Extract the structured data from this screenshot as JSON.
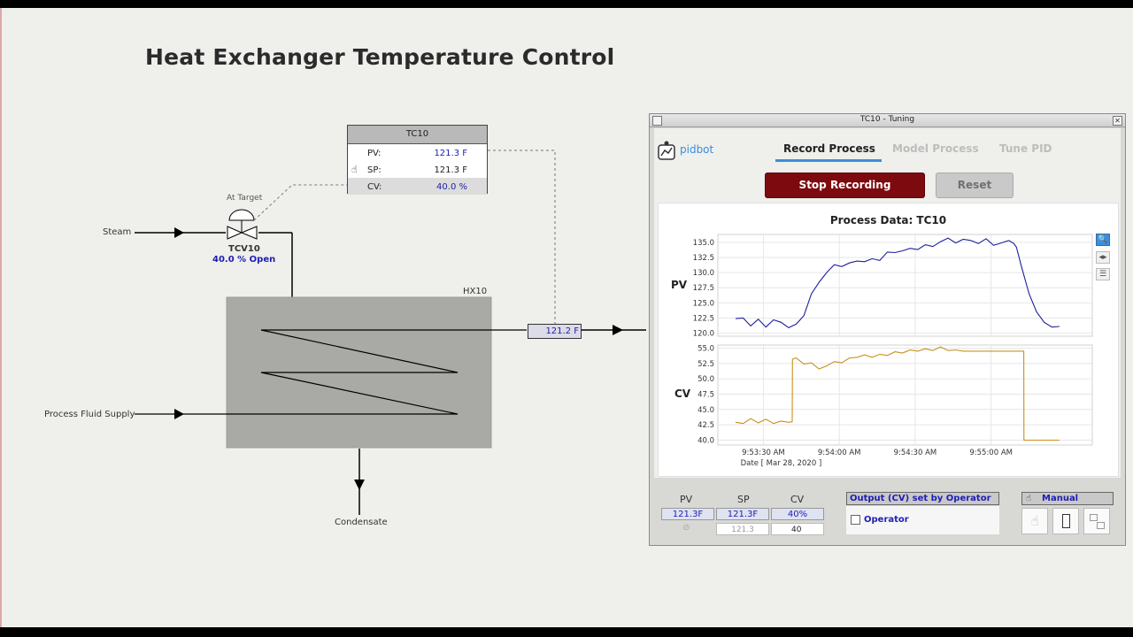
{
  "page": {
    "title": "Heat Exchanger Temperature Control"
  },
  "diagram": {
    "steam_label": "Steam",
    "valve_status": "At Target",
    "valve_tag": "TCV10",
    "valve_open": "40.0 % Open",
    "hx_tag": "HX10",
    "process_fluid_label": "Process Fluid Supply",
    "condensate_label": "Condensate",
    "outlet_temp": "121.2 F"
  },
  "faceplate": {
    "tag": "TC10",
    "pv_label": "PV:",
    "pv_value": "121.3 F",
    "sp_label": "SP:",
    "sp_value": "121.3 F",
    "cv_label": "CV:",
    "cv_value": "40.0 %"
  },
  "tuning_window": {
    "title": "TC10 - Tuning",
    "logo": "pidbot",
    "tabs": [
      "Record Process",
      "Model Process",
      "Tune PID"
    ],
    "active_tab": "Record Process",
    "stop_button": "Stop Recording",
    "reset_button": "Reset",
    "status": {
      "pv_header": "PV",
      "sp_header": "SP",
      "cv_header": "CV",
      "pv_value": "121.3F",
      "sp_value": "121.3F",
      "cv_value": "40%",
      "sp_input": "121.3",
      "cv_input": "40",
      "output_header": "Output (CV) set by Operator",
      "operator_label": "Operator",
      "mode_header": "Manual"
    }
  },
  "chart_data": {
    "type": "line",
    "title": "Process Data: TC10",
    "xlabel": "Date  [ Mar 28, 2020 ]",
    "x_ticks": [
      "9:53:30 AM",
      "9:54:00 AM",
      "9:54:30 AM",
      "9:55:00 AM"
    ],
    "x_range_seconds": [
      0,
      134
    ],
    "panels": [
      {
        "name": "PV",
        "ylabel": "PV",
        "ylim": [
          119.5,
          136.3
        ],
        "y_ticks": [
          "120.0",
          "122.5",
          "125.0",
          "127.5",
          "130.0",
          "132.5",
          "135.0"
        ],
        "color": "#1f1fa0",
        "x": [
          0,
          3,
          6,
          9,
          12,
          15,
          18,
          21,
          24,
          27,
          30,
          33,
          36,
          39,
          42,
          45,
          48,
          51,
          54,
          57,
          60,
          63,
          66,
          69,
          72,
          75,
          78,
          81,
          84,
          87,
          90,
          93,
          96,
          99,
          102,
          105,
          108,
          110,
          111,
          113,
          116,
          119,
          122,
          125,
          128
        ],
        "y": [
          122.4,
          122.5,
          121.2,
          122.3,
          121.0,
          122.2,
          121.8,
          120.9,
          121.5,
          122.9,
          126.5,
          128.4,
          130.0,
          131.3,
          131.0,
          131.6,
          131.9,
          131.8,
          132.3,
          132.0,
          133.4,
          133.3,
          133.6,
          134.0,
          133.8,
          134.6,
          134.3,
          135.1,
          135.7,
          134.9,
          135.5,
          135.3,
          134.8,
          135.6,
          134.5,
          134.9,
          135.3,
          134.8,
          134.2,
          131.0,
          126.5,
          123.5,
          121.8,
          121.0,
          121.1
        ]
      },
      {
        "name": "CV",
        "ylabel": "CV",
        "ylim": [
          39.2,
          55.5
        ],
        "y_ticks": [
          "40.0",
          "42.5",
          "45.0",
          "47.5",
          "50.0",
          "52.5",
          "55.0"
        ],
        "color": "#c8901c",
        "x": [
          0,
          3,
          6,
          9,
          12,
          15,
          18,
          21,
          22.4,
          22.5,
          24,
          27,
          30,
          33,
          36,
          39,
          42,
          45,
          48,
          51,
          54,
          57,
          60,
          63,
          66,
          69,
          72,
          75,
          78,
          81,
          84,
          87,
          90,
          93,
          96,
          99,
          102,
          105,
          108,
          111,
          113.9,
          114,
          117,
          120,
          122,
          124,
          128
        ],
        "y": [
          42.9,
          42.7,
          43.5,
          42.8,
          43.4,
          42.7,
          43.1,
          42.9,
          43.0,
          53.2,
          53.4,
          52.4,
          52.6,
          51.6,
          52.1,
          52.8,
          52.6,
          53.4,
          53.5,
          53.9,
          53.5,
          54.0,
          53.8,
          54.4,
          54.2,
          54.7,
          54.5,
          54.9,
          54.6,
          55.2,
          54.6,
          54.7,
          54.5,
          54.5,
          54.5,
          54.5,
          54.5,
          54.5,
          54.5,
          54.5,
          54.5,
          40.0,
          40.0,
          40.0,
          40.0,
          40.0,
          40.0
        ]
      }
    ],
    "grid": true
  }
}
